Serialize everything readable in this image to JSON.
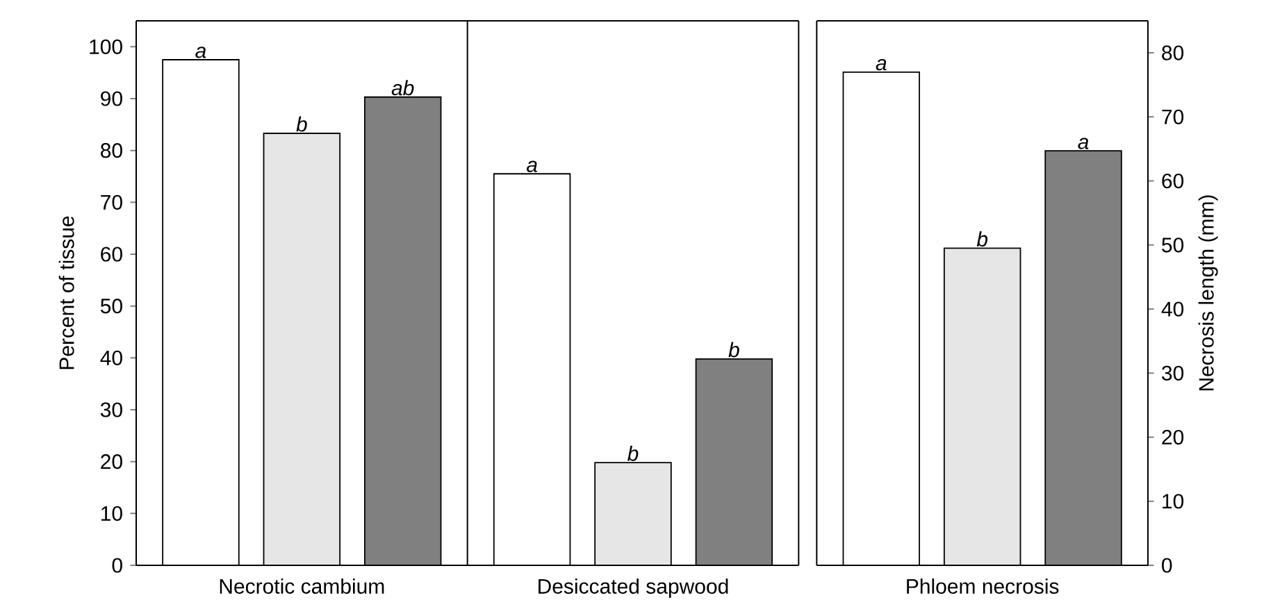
{
  "chart_data": {
    "type": "bar",
    "categories": [
      "Necrotic cambium",
      "Desiccated sapwood",
      "Phloem necrosis"
    ],
    "ylabel": "Percent of tissue",
    "ylim": [
      0,
      105
    ],
    "yticks": [
      0,
      10,
      20,
      30,
      40,
      50,
      60,
      70,
      80,
      90,
      100
    ],
    "y2label": "Necrosis length (mm)",
    "y2lim": [
      0,
      85
    ],
    "y2ticks": [
      0,
      10,
      20,
      30,
      40,
      50,
      60,
      70,
      80
    ],
    "series": [
      {
        "color": "#ffffff",
        "values": [
          97.5,
          75.5,
          null
        ],
        "value_labels": [
          "a",
          "a",
          null
        ]
      },
      {
        "color": "#e6e6e6",
        "values": [
          83.3,
          19.8,
          null
        ],
        "value_labels": [
          "b",
          "b",
          null
        ]
      },
      {
        "color": "#808080",
        "values": [
          90.3,
          39.8,
          null
        ],
        "value_labels": [
          "ab",
          "b",
          null
        ]
      },
      {
        "color": "#ffffff",
        "values": [
          null,
          null,
          77
        ],
        "axis": "y2",
        "value_labels": [
          null,
          null,
          "a"
        ]
      },
      {
        "color": "#e6e6e6",
        "values": [
          null,
          null,
          49.5
        ],
        "axis": "y2",
        "value_labels": [
          null,
          null,
          "b"
        ]
      },
      {
        "color": "#808080",
        "values": [
          null,
          null,
          64.7
        ],
        "axis": "y2",
        "value_labels": [
          null,
          null,
          "a"
        ]
      }
    ]
  }
}
